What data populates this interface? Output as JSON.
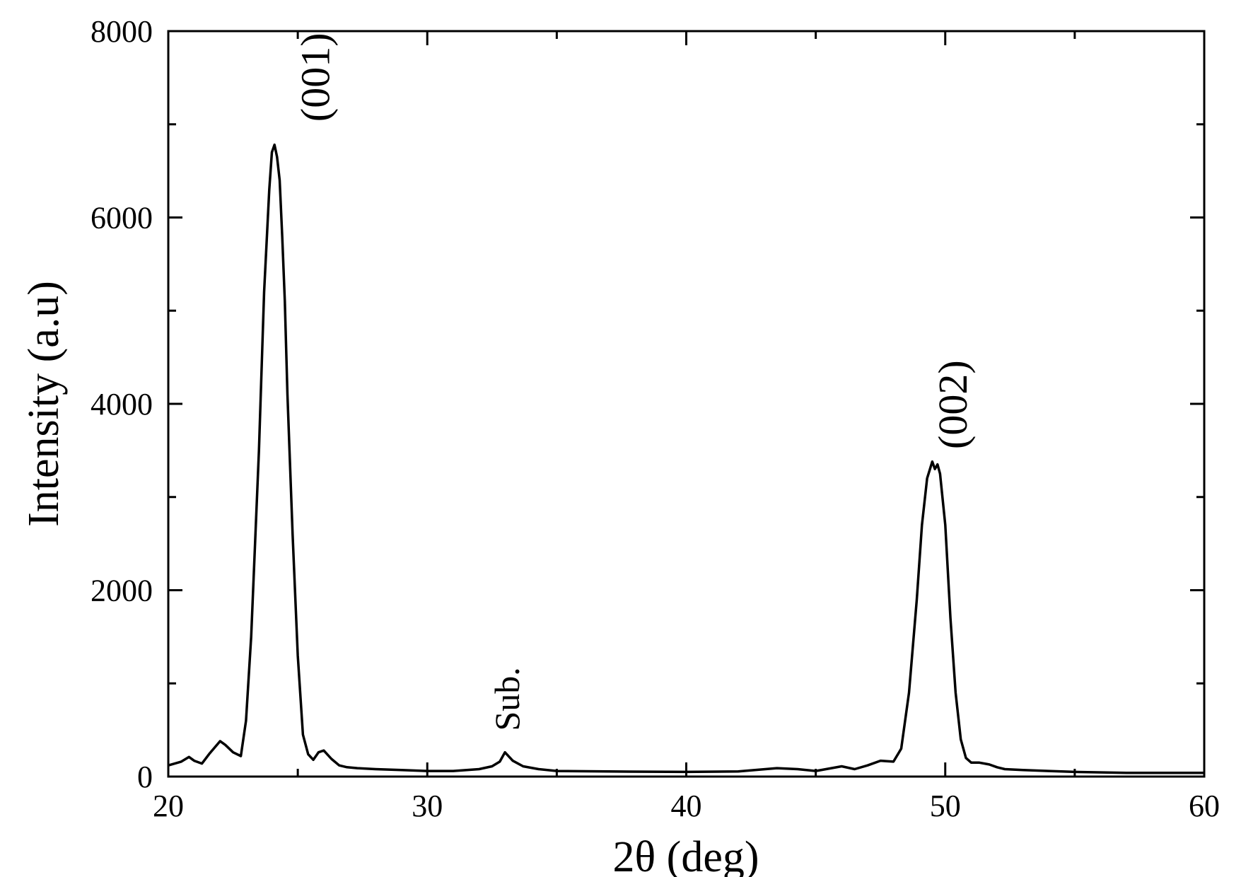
{
  "chart_data": {
    "type": "line",
    "title": "",
    "xlabel": "2θ (deg)",
    "ylabel": "Intensity (a.u)",
    "xlim": [
      20,
      60
    ],
    "ylim": [
      0,
      8000
    ],
    "x_ticks": [
      20,
      30,
      40,
      50,
      60
    ],
    "y_ticks": [
      0,
      2000,
      4000,
      6000,
      8000
    ],
    "grid": false,
    "legend": "none",
    "line_color": "#000000",
    "series": [
      {
        "x": [
          20.0,
          20.5,
          20.8,
          21.0,
          21.3,
          21.6,
          22.0,
          22.2,
          22.5,
          22.8,
          23.0,
          23.2,
          23.5,
          23.7,
          23.9,
          24.0,
          24.1,
          24.2,
          24.3,
          24.4,
          24.5,
          24.6,
          24.8,
          25.0,
          25.2,
          25.4,
          25.6,
          25.8,
          26.0,
          26.3,
          26.6,
          26.9,
          27.3,
          28.0,
          29.0,
          30.0,
          31.0,
          32.0,
          32.5,
          32.8,
          33.0,
          33.3,
          33.7,
          34.3,
          35.0,
          37.0,
          40.0,
          42.0,
          43.5,
          44.3,
          45.0,
          46.0,
          46.5,
          47.0,
          47.5,
          48.0,
          48.3,
          48.6,
          48.9,
          49.1,
          49.3,
          49.5,
          49.6,
          49.7,
          49.8,
          50.0,
          50.2,
          50.4,
          50.6,
          50.8,
          51.0,
          51.3,
          51.7,
          52.0,
          52.3,
          53.0,
          54.0,
          55.0,
          57.0,
          60.0
        ],
        "y": [
          120,
          160,
          210,
          170,
          140,
          250,
          380,
          340,
          260,
          220,
          600,
          1500,
          3500,
          5200,
          6300,
          6700,
          6780,
          6650,
          6400,
          5800,
          5100,
          4100,
          2600,
          1300,
          450,
          240,
          180,
          260,
          280,
          190,
          120,
          100,
          90,
          80,
          70,
          60,
          60,
          80,
          110,
          160,
          260,
          170,
          110,
          80,
          60,
          55,
          50,
          55,
          90,
          80,
          60,
          110,
          80,
          120,
          170,
          160,
          300,
          900,
          1900,
          2700,
          3200,
          3380,
          3300,
          3350,
          3250,
          2700,
          1700,
          900,
          400,
          200,
          150,
          150,
          130,
          100,
          80,
          70,
          60,
          50,
          40,
          40
        ]
      }
    ],
    "annotations": [
      {
        "text": "(001)",
        "x": 24.3,
        "y": 6800
      },
      {
        "text": "Sub.",
        "x": 33.0,
        "y": 300
      },
      {
        "text": "(002)",
        "x": 49.6,
        "y": 3400
      }
    ]
  }
}
